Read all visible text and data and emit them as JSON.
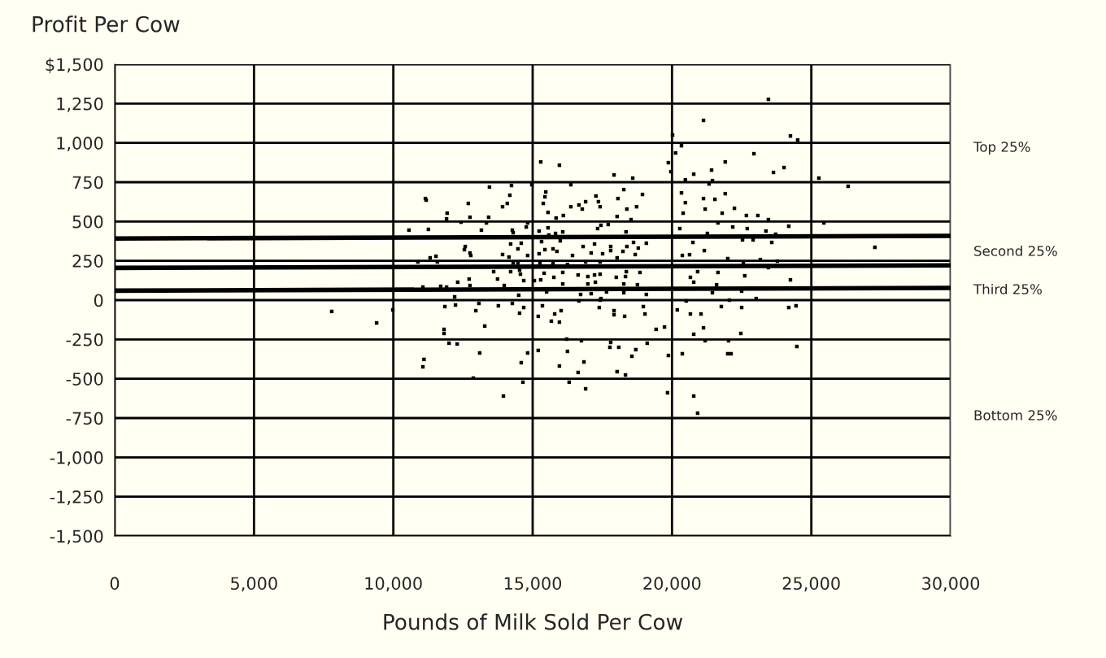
{
  "chart_data": {
    "type": "scatter",
    "title": "Profit Per Cow",
    "xlabel": "Pounds of Milk Sold Per Cow",
    "xlim": [
      0,
      30000
    ],
    "xticks": [
      {
        "value": 0,
        "label": "0"
      },
      {
        "value": 5000,
        "label": "5,000"
      },
      {
        "value": 10000,
        "label": "10,000"
      },
      {
        "value": 15000,
        "label": "15,000"
      },
      {
        "value": 20000,
        "label": "20,000"
      },
      {
        "value": 25000,
        "label": "25,000"
      },
      {
        "value": 30000,
        "label": "30,000"
      }
    ],
    "ylim": [
      -1500,
      1500
    ],
    "yticks": [
      {
        "value": 1500,
        "label": "$1,500"
      },
      {
        "value": 1250,
        "label": "1,250"
      },
      {
        "value": 1000,
        "label": "1,000"
      },
      {
        "value": 750,
        "label": "750"
      },
      {
        "value": 500,
        "label": "500"
      },
      {
        "value": 250,
        "label": "250"
      },
      0,
      {
        "value": -250,
        "label": "-250"
      },
      {
        "value": -500,
        "label": "-500"
      },
      {
        "value": -750,
        "label": "-750"
      },
      {
        "value": -1000,
        "label": "-1,000"
      },
      {
        "value": -1250,
        "label": "-1,250"
      },
      {
        "value": -1500,
        "label": "-1,500"
      }
    ],
    "grid": true,
    "annotations": [
      "Top 25%",
      "Second 25%",
      "Third 25%",
      "Bottom 25%"
    ],
    "series": [
      {
        "color": "#000000",
        "x": [
          7790,
          9400,
          9980,
          11150,
          11060,
          11100,
          11820,
          11820,
          12000,
          12290,
          13100,
          13280,
          13950,
          12870,
          14590,
          14650,
          14820,
          15200,
          15960,
          16250,
          16310,
          16630,
          16840,
          16900,
          18030,
          18330,
          18560,
          18700,
          17770,
          18090,
          17800,
          16220,
          16750,
          19110,
          19870,
          19840,
          20370,
          20780,
          20920,
          20780,
          21130,
          21190,
          22030,
          22000,
          22120,
          22470,
          24480,
          19430,
          19730,
          23460,
          21130,
          20020,
          24250,
          24510,
          20340,
          20130,
          22940,
          19870,
          21910,
          24020,
          23640,
          21420,
          19960,
          20780,
          20480,
          21450,
          25270,
          26320,
          21330,
          20340,
          21910,
          21130,
          21540,
          20480,
          22240,
          21190,
          22670,
          23080,
          21800,
          20400,
          23460,
          24190,
          25450,
          21650,
          22180,
          22700,
          23370,
          20280,
          21270,
          23720,
          22530,
          22910,
          23580,
          21160,
          20750,
          27280,
          20370,
          20630,
          22000,
          23170,
          22560,
          23780,
          23460,
          20920,
          21650,
          22610,
          24250,
          20660,
          20780,
          21600,
          22500,
          21450,
          23020,
          22060,
          20510,
          21770,
          22500,
          24190,
          24450,
          20190,
          20660,
          21040,
          15290,
          15960,
          17920,
          18590,
          13450,
          14240,
          14970,
          16370,
          11180,
          12690,
          14180,
          14090,
          13920,
          15470,
          15440,
          15380,
          17270,
          17360,
          16900,
          18270,
          18060,
          18940,
          16370,
          16660,
          16780,
          17420,
          18380,
          18730,
          11930,
          11910,
          12750,
          13420,
          12430,
          13340,
          10560,
          11260,
          13160,
          14270,
          14300,
          14770,
          14820,
          15230,
          15550,
          15550,
          15840,
          16100,
          16080,
          15580,
          15820,
          17450,
          17710,
          17330,
          18030,
          18530,
          18350,
          12580,
          12550,
          12750,
          12780,
          11530,
          11320,
          10880,
          11580,
          14210,
          14590,
          14470,
          13920,
          14150,
          14820,
          15230,
          15320,
          15440,
          15730,
          15870,
          15990,
          16430,
          16810,
          17100,
          17220,
          17510,
          17800,
          17800,
          18240,
          18380,
          18620,
          18680,
          19080,
          18790,
          14300,
          14470,
          15260,
          15730,
          16250,
          16900,
          17420,
          18030,
          13600,
          14210,
          14530,
          14560,
          15410,
          15760,
          16080,
          16630,
          16980,
          17220,
          17420,
          18000,
          18330,
          18360,
          18850,
          12310,
          12720,
          12750,
          13740,
          13980,
          14680,
          15060,
          15290,
          16080,
          16980,
          17250,
          18270,
          18760,
          11060,
          11700,
          11910,
          15500,
          16720,
          17100,
          17650,
          18270,
          19080,
          12200,
          14500,
          16660,
          17450,
          11850,
          12230,
          13070,
          12960,
          13770,
          14270,
          14680,
          14530,
          15350,
          15200,
          15790,
          16020,
          15670,
          15960,
          17390,
          17920,
          17920,
          18300,
          18970,
          19030,
          17420
        ],
        "values": [
          -72,
          -145,
          -62,
          646,
          -424,
          -377,
          -186,
          -212,
          -274,
          -279,
          -336,
          -165,
          -610,
          -496,
          -398,
          -522,
          -336,
          -320,
          -419,
          -326,
          -522,
          -460,
          -393,
          -564,
          -455,
          -476,
          -357,
          -315,
          -300,
          -300,
          -269,
          -248,
          -258,
          -274,
          -352,
          -589,
          -341,
          -610,
          -719,
          -217,
          -176,
          -258,
          -258,
          -341,
          -341,
          -212,
          -295,
          -186,
          -171,
          1277,
          1143,
          1050,
          1044,
          1018,
          982,
          936,
          931,
          874,
          879,
          843,
          812,
          827,
          817,
          801,
          765,
          760,
          776,
          724,
          739,
          682,
          677,
          646,
          641,
          620,
          584,
          579,
          538,
          538,
          553,
          553,
          512,
          470,
          491,
          491,
          465,
          455,
          439,
          455,
          424,
          419,
          383,
          383,
          367,
          315,
          367,
          336,
          284,
          289,
          264,
          258,
          238,
          248,
          207,
          181,
          176,
          155,
          129,
          145,
          114,
          98,
          57,
          47,
          10,
          0,
          -5,
          -41,
          -47,
          -47,
          -36,
          -62,
          -88,
          -88,
          879,
          858,
          796,
          776,
          719,
          729,
          734,
          734,
          636,
          615,
          667,
          615,
          594,
          688,
          657,
          615,
          662,
          626,
          626,
          703,
          646,
          672,
          594,
          605,
          579,
          594,
          579,
          594,
          553,
          517,
          527,
          527,
          496,
          491,
          445,
          450,
          445,
          445,
          429,
          465,
          491,
          439,
          558,
          460,
          522,
          538,
          434,
          414,
          424,
          476,
          481,
          455,
          532,
          512,
          434,
          341,
          321,
          300,
          284,
          279,
          269,
          243,
          243,
          357,
          362,
          326,
          290,
          274,
          284,
          295,
          372,
          321,
          326,
          310,
          377,
          284,
          341,
          300,
          357,
          295,
          341,
          315,
          310,
          341,
          367,
          290,
          362,
          331,
          238,
          238,
          238,
          238,
          227,
          243,
          243,
          269,
          181,
          181,
          191,
          165,
          171,
          145,
          176,
          160,
          150,
          160,
          165,
          145,
          150,
          181,
          176,
          114,
          134,
          93,
          134,
          93,
          124,
          124,
          129,
          103,
          103,
          114,
          103,
          98,
          83,
          88,
          83,
          52,
          36,
          41,
          52,
          47,
          36,
          21,
          31,
          -5,
          10,
          -41,
          -31,
          -21,
          -67,
          -36,
          -21,
          -47,
          -83,
          -36,
          -103,
          -88,
          -67,
          -134,
          -140,
          -47,
          -67,
          -93,
          -103,
          -41,
          -88,
          0
        ]
      },
      {
        "type": "line",
        "color": "#000000",
        "x": [
          0,
          30000
        ],
        "values": [
          392,
          409
        ]
      },
      {
        "type": "line",
        "color": "#000000",
        "x": [
          0,
          30000
        ],
        "values": [
          205,
          221
        ]
      },
      {
        "type": "line",
        "color": "#000000",
        "x": [
          0,
          30000
        ],
        "values": [
          60,
          78
        ]
      }
    ]
  }
}
